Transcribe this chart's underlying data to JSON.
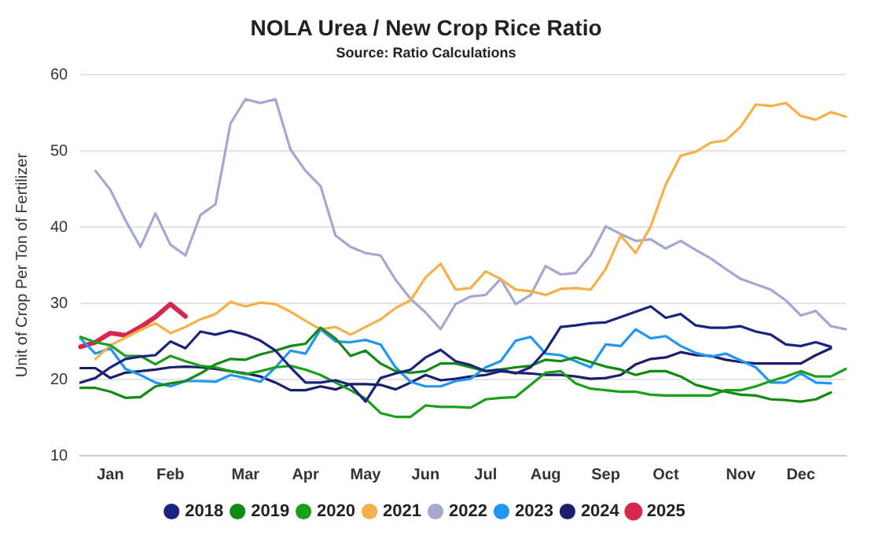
{
  "chart_data": {
    "type": "line",
    "title": "NOLA Urea / New Crop Rice Ratio",
    "subtitle": "Source: Ratio Calculations",
    "ylabel": "Unit of Crop Per Ton of Fertilizer",
    "categories": [
      null,
      null,
      "Jan",
      null,
      null,
      null,
      "Feb",
      null,
      null,
      null,
      null,
      "Mar",
      null,
      null,
      null,
      "Apr",
      null,
      null,
      null,
      "May",
      null,
      null,
      null,
      "Jun",
      null,
      null,
      null,
      "Jul",
      null,
      null,
      null,
      "Aug",
      null,
      null,
      null,
      "Sep",
      null,
      null,
      null,
      "Oct",
      null,
      null,
      null,
      null,
      "Nov",
      null,
      null,
      null,
      "Dec",
      null,
      null,
      null
    ],
    "ylim": [
      10,
      60
    ],
    "yticks": [
      10,
      20,
      30,
      40,
      50,
      60
    ],
    "grid": "y",
    "legend": "bottom",
    "marker": "none",
    "line_style": "solid",
    "series": [
      {
        "name": "2018",
        "color": "#1a237e",
        "values": [
          19.6,
          20.2,
          21.6,
          22.7,
          23.0,
          23.2,
          25.0,
          24.1,
          26.3,
          25.9,
          26.4,
          25.9,
          25.1,
          23.8,
          21.6,
          19.6,
          19.6,
          19.9,
          19.3,
          17.1,
          20.2,
          20.8,
          21.3,
          22.9,
          23.9,
          22.4,
          21.9,
          21.1,
          21.3,
          20.8,
          21.6,
          23.8,
          26.9,
          27.1,
          27.4,
          27.5,
          28.2,
          28.9,
          29.6,
          28.1,
          28.6,
          27.1,
          26.8,
          26.8,
          27.0,
          26.3,
          25.9,
          24.6,
          24.4,
          24.9,
          24.3,
          null
        ]
      },
      {
        "name": "2019",
        "color": "#138a13",
        "values": [
          18.9,
          18.9,
          18.4,
          17.6,
          17.7,
          19.1,
          19.5,
          19.8,
          20.8,
          22.0,
          22.7,
          22.6,
          23.3,
          23.8,
          24.4,
          24.7,
          26.8,
          25.4,
          23.1,
          23.8,
          22.1,
          21.1,
          20.9,
          21.1,
          22.1,
          22.1,
          21.6,
          21.1,
          21.3,
          21.6,
          21.8,
          22.6,
          22.4,
          22.9,
          22.3,
          21.7,
          21.3,
          20.6,
          21.1,
          21.1,
          20.4,
          19.3,
          18.8,
          18.4,
          18.0,
          17.9,
          17.4,
          17.3,
          17.1,
          17.4,
          18.3,
          null
        ]
      },
      {
        "name": "2020",
        "color": "#1ca01c",
        "values": [
          25.6,
          24.9,
          24.5,
          23.1,
          23.1,
          22.0,
          23.1,
          22.4,
          21.8,
          21.6,
          21.1,
          20.7,
          21.1,
          21.6,
          21.8,
          21.3,
          20.6,
          19.6,
          18.6,
          17.5,
          15.6,
          15.1,
          15.1,
          16.6,
          16.4,
          16.4,
          16.3,
          17.4,
          17.6,
          17.7,
          19.3,
          20.9,
          21.1,
          19.5,
          18.8,
          18.6,
          18.4,
          18.4,
          18.0,
          17.9,
          17.9,
          17.9,
          17.9,
          18.6,
          18.6,
          19.1,
          19.8,
          20.4,
          21.1,
          20.4,
          20.4,
          21.4
        ]
      },
      {
        "name": "2021",
        "color": "#f5b04a",
        "values": [
          null,
          22.7,
          24.5,
          25.5,
          26.5,
          27.4,
          26.1,
          26.9,
          27.9,
          28.6,
          30.2,
          29.6,
          30.1,
          29.9,
          28.9,
          27.7,
          26.6,
          26.9,
          25.9,
          26.9,
          27.9,
          29.4,
          30.4,
          33.4,
          35.2,
          31.8,
          32.0,
          34.2,
          33.2,
          31.8,
          31.6,
          31.1,
          31.9,
          32.0,
          31.8,
          34.5,
          38.9,
          36.6,
          40.1,
          45.6,
          49.4,
          49.9,
          51.1,
          51.4,
          53.2,
          56.1,
          55.9,
          56.3,
          54.6,
          54.1,
          55.1,
          54.5
        ]
      },
      {
        "name": "2022",
        "color": "#a4a8d1",
        "values": [
          null,
          47.4,
          44.9,
          40.9,
          37.4,
          41.8,
          37.7,
          36.3,
          41.6,
          43,
          53.6,
          56.8,
          56.3,
          56.8,
          50.2,
          47.4,
          45.4,
          38.9,
          37.4,
          36.6,
          36.3,
          33.1,
          30.6,
          28.8,
          26.6,
          29.9,
          30.9,
          31.1,
          33.2,
          29.9,
          31.1,
          34.9,
          33.8,
          34,
          36.3,
          40.1,
          39.1,
          38.2,
          38.4,
          37.2,
          38.2,
          37,
          35.9,
          34.5,
          33.2,
          32.5,
          31.8,
          30.4,
          28.4,
          29,
          27,
          26.6
        ]
      },
      {
        "name": "2023",
        "color": "#2196f3",
        "values": [
          25.4,
          23.4,
          24.1,
          21.4,
          20.6,
          19.6,
          19.1,
          19.8,
          19.8,
          19.7,
          20.6,
          20.2,
          19.7,
          21.6,
          23.8,
          23.4,
          26.6,
          25.0,
          24.9,
          25.2,
          24.6,
          21.6,
          19.7,
          19.1,
          19.1,
          19.8,
          20.1,
          21.6,
          22.4,
          25.1,
          25.6,
          23.4,
          23.2,
          22.4,
          21.6,
          24.6,
          24.4,
          26.6,
          25.4,
          25.7,
          24.4,
          23.5,
          23.0,
          23.4,
          22.5,
          21.6,
          19.6,
          19.6,
          20.8,
          19.6,
          19.5,
          null
        ]
      },
      {
        "name": "2024",
        "color": "#1b1f6b",
        "values": [
          21.5,
          21.5,
          20.2,
          20.9,
          21.1,
          21.3,
          21.6,
          21.7,
          21.6,
          21.4,
          21.1,
          20.8,
          20.4,
          19.6,
          18.6,
          18.6,
          19.1,
          18.7,
          19.4,
          19.4,
          19.3,
          18.7,
          19.6,
          20.6,
          19.9,
          20.1,
          20.4,
          20.6,
          21.1,
          20.9,
          20.8,
          20.6,
          20.6,
          20.4,
          20.1,
          20.2,
          20.6,
          22.0,
          22.7,
          22.9,
          23.6,
          23.2,
          23.1,
          22.6,
          22.3,
          22.1,
          22.1,
          22.1,
          22.1,
          23.2,
          24.1,
          null
        ]
      },
      {
        "name": "2025",
        "color": "#d6284f",
        "values": [
          24.3,
          24.9,
          26.1,
          25.8,
          26.9,
          28.2,
          29.9,
          28.3,
          null,
          null,
          null,
          null,
          null,
          null,
          null,
          null,
          null,
          null,
          null,
          null,
          null,
          null,
          null,
          null,
          null,
          null,
          null,
          null,
          null,
          null,
          null,
          null,
          null,
          null,
          null,
          null,
          null,
          null,
          null,
          null,
          null,
          null,
          null,
          null,
          null,
          null,
          null,
          null,
          null,
          null,
          null,
          null
        ]
      }
    ]
  }
}
